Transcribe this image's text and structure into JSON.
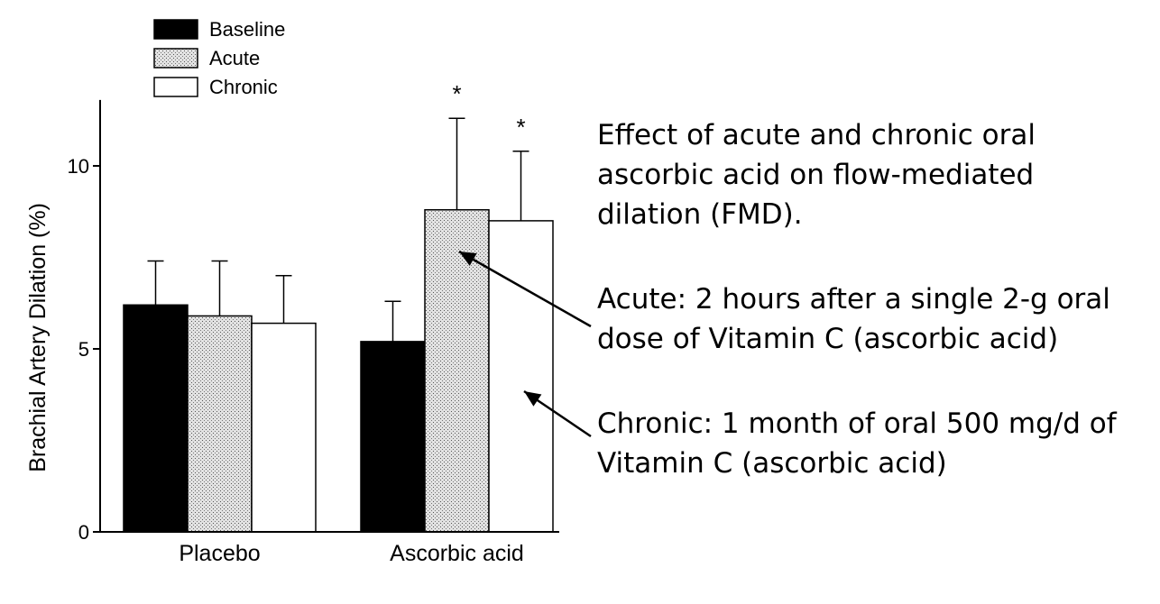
{
  "chart_data": {
    "type": "bar",
    "categories": [
      "Placebo",
      "Ascorbic acid"
    ],
    "series": [
      {
        "name": "Baseline",
        "values": [
          6.2,
          5.2
        ],
        "errors": [
          1.2,
          1.1
        ],
        "color": "#000000"
      },
      {
        "name": "Acute",
        "values": [
          5.9,
          8.8
        ],
        "errors": [
          1.5,
          2.5
        ],
        "color": "#d6d6d6"
      },
      {
        "name": "Chronic",
        "values": [
          5.7,
          8.5
        ],
        "errors": [
          1.3,
          1.9
        ],
        "color": "#ffffff"
      }
    ],
    "significance": [
      {
        "category": "Ascorbic acid",
        "series": "Acute",
        "label": "*"
      },
      {
        "category": "Ascorbic acid",
        "series": "Chronic",
        "label": "*"
      }
    ],
    "ylabel": "Brachial Artery Dilation (%)",
    "xlabel": "",
    "ylim": [
      0,
      11.8
    ],
    "yticks": [
      0,
      5,
      10
    ],
    "ytick_labels": [
      "0",
      "5",
      "10"
    ],
    "grid": false,
    "legend": "top-left"
  },
  "annotations": {
    "description": "Effect of acute and chronic oral ascorbic acid on flow-mediated dilation (FMD).",
    "acute": "Acute: 2 hours after a single 2-g oral dose of Vitamin C (ascorbic acid)",
    "chronic": "Chronic: 1 month of oral 500 mg/d of Vitamin C (ascorbic acid)"
  }
}
